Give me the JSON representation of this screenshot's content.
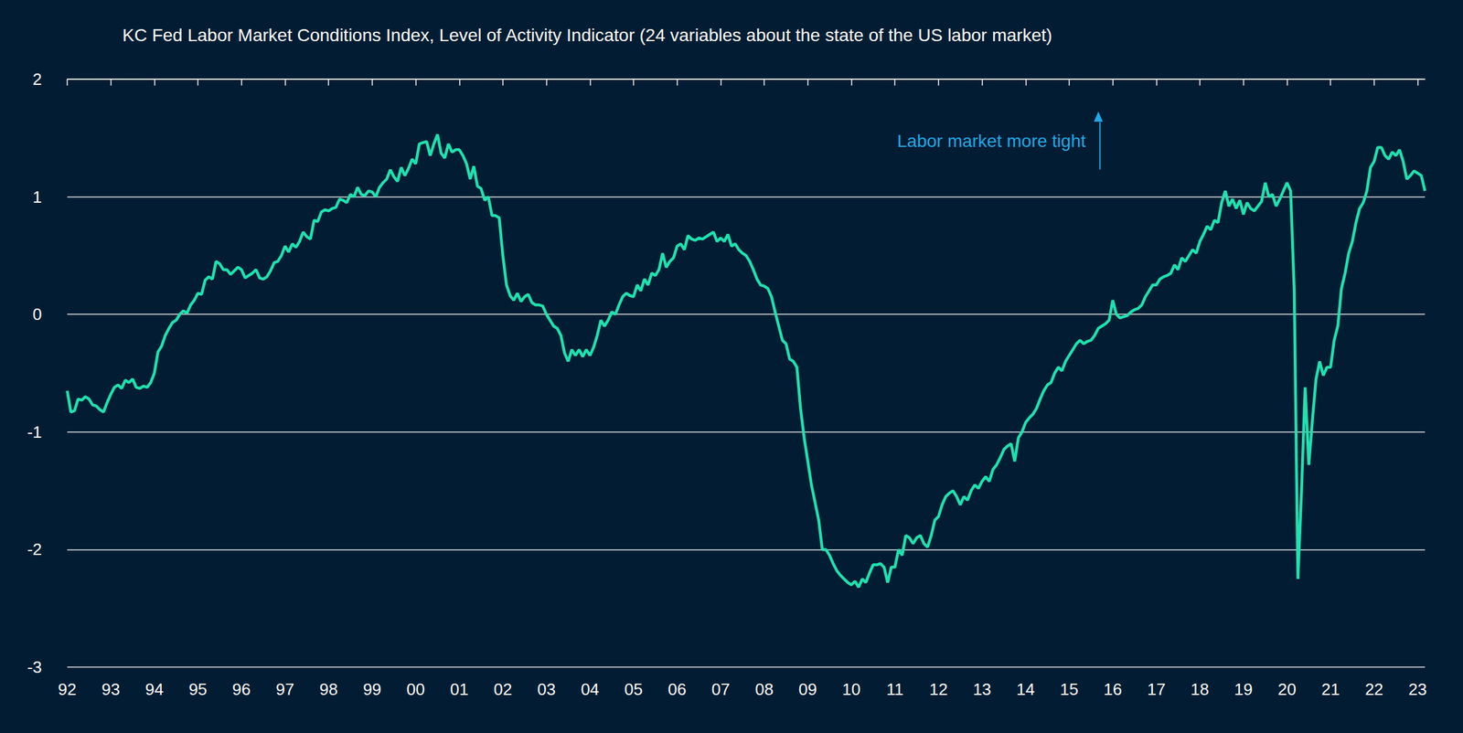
{
  "chart_data": {
    "type": "line",
    "title": "KC Fed Labor Market Conditions Index, Level of Activity Indicator (24 variables about the state of the US labor market)",
    "annotations": [
      {
        "text": "Labor market more tight"
      }
    ],
    "categories": [
      "92",
      null,
      null,
      null,
      null,
      null,
      null,
      null,
      null,
      null,
      null,
      null,
      "93",
      null,
      null,
      null,
      null,
      null,
      null,
      null,
      null,
      null,
      null,
      null,
      "94",
      null,
      null,
      null,
      null,
      null,
      null,
      null,
      null,
      null,
      null,
      null,
      "95",
      null,
      null,
      null,
      null,
      null,
      null,
      null,
      null,
      null,
      null,
      null,
      "96",
      null,
      null,
      null,
      null,
      null,
      null,
      null,
      null,
      null,
      null,
      null,
      "97",
      null,
      null,
      null,
      null,
      null,
      null,
      null,
      null,
      null,
      null,
      null,
      "98",
      null,
      null,
      null,
      null,
      null,
      null,
      null,
      null,
      null,
      null,
      null,
      "99",
      null,
      null,
      null,
      null,
      null,
      null,
      null,
      null,
      null,
      null,
      null,
      "00",
      null,
      null,
      null,
      null,
      null,
      null,
      null,
      null,
      null,
      null,
      null,
      "01",
      null,
      null,
      null,
      null,
      null,
      null,
      null,
      null,
      null,
      null,
      null,
      "02",
      null,
      null,
      null,
      null,
      null,
      null,
      null,
      null,
      null,
      null,
      null,
      "03",
      null,
      null,
      null,
      null,
      null,
      null,
      null,
      null,
      null,
      null,
      null,
      "04",
      null,
      null,
      null,
      null,
      null,
      null,
      null,
      null,
      null,
      null,
      null,
      "05",
      null,
      null,
      null,
      null,
      null,
      null,
      null,
      null,
      null,
      null,
      null,
      "06",
      null,
      null,
      null,
      null,
      null,
      null,
      null,
      null,
      null,
      null,
      null,
      "07",
      null,
      null,
      null,
      null,
      null,
      null,
      null,
      null,
      null,
      null,
      null,
      "08",
      null,
      null,
      null,
      null,
      null,
      null,
      null,
      null,
      null,
      null,
      null,
      "09",
      null,
      null,
      null,
      null,
      null,
      null,
      null,
      null,
      null,
      null,
      null,
      "10",
      null,
      null,
      null,
      null,
      null,
      null,
      null,
      null,
      null,
      null,
      null,
      "11",
      null,
      null,
      null,
      null,
      null,
      null,
      null,
      null,
      null,
      null,
      null,
      "12",
      null,
      null,
      null,
      null,
      null,
      null,
      null,
      null,
      null,
      null,
      null,
      "13",
      null,
      null,
      null,
      null,
      null,
      null,
      null,
      null,
      null,
      null,
      null,
      "14",
      null,
      null,
      null,
      null,
      null,
      null,
      null,
      null,
      null,
      null,
      null,
      "15",
      null,
      null,
      null,
      null,
      null,
      null,
      null,
      null,
      null,
      null,
      null,
      "16",
      null,
      null,
      null,
      null,
      null,
      null,
      null,
      null,
      null,
      null,
      null,
      "17",
      null,
      null,
      null,
      null,
      null,
      null,
      null,
      null,
      null,
      null,
      null,
      "18",
      null,
      null,
      null,
      null,
      null,
      null,
      null,
      null,
      null,
      null,
      null,
      "19",
      null,
      null,
      null,
      null,
      null,
      null,
      null,
      null,
      null,
      null,
      null,
      "20",
      null,
      null,
      null,
      null,
      null,
      null,
      null,
      null,
      null,
      null,
      null,
      "21",
      null,
      null,
      null,
      null,
      null,
      null,
      null,
      null,
      null,
      null,
      null,
      "22",
      null,
      null,
      null,
      null,
      null,
      null,
      null,
      null,
      null,
      null,
      null,
      "23",
      null,
      null
    ],
    "values": [
      -0.65,
      -0.83,
      -0.82,
      -0.72,
      -0.73,
      -0.7,
      -0.72,
      -0.77,
      -0.78,
      -0.81,
      -0.83,
      -0.75,
      -0.68,
      -0.62,
      -0.6,
      -0.63,
      -0.56,
      -0.58,
      -0.55,
      -0.62,
      -0.63,
      -0.61,
      -0.62,
      -0.58,
      -0.5,
      -0.32,
      -0.27,
      -0.18,
      -0.12,
      -0.07,
      -0.05,
      0.0,
      0.03,
      0.01,
      0.08,
      0.12,
      0.18,
      0.17,
      0.29,
      0.32,
      0.3,
      0.45,
      0.43,
      0.38,
      0.38,
      0.34,
      0.37,
      0.4,
      0.38,
      0.31,
      0.33,
      0.35,
      0.38,
      0.31,
      0.3,
      0.32,
      0.37,
      0.44,
      0.45,
      0.5,
      0.58,
      0.53,
      0.6,
      0.57,
      0.62,
      0.7,
      0.66,
      0.64,
      0.8,
      0.79,
      0.87,
      0.89,
      0.88,
      0.9,
      0.91,
      0.98,
      0.97,
      0.95,
      1.02,
      1.0,
      1.08,
      1.02,
      1.01,
      1.05,
      1.04,
      1.0,
      1.08,
      1.12,
      1.15,
      1.23,
      1.17,
      1.13,
      1.25,
      1.18,
      1.24,
      1.32,
      1.28,
      1.45,
      1.46,
      1.47,
      1.35,
      1.45,
      1.53,
      1.37,
      1.33,
      1.45,
      1.38,
      1.4,
      1.4,
      1.35,
      1.28,
      1.15,
      1.26,
      1.09,
      1.07,
      0.97,
      1.0,
      0.84,
      0.84,
      0.82,
      0.5,
      0.25,
      0.16,
      0.12,
      0.18,
      0.11,
      0.15,
      0.17,
      0.1,
      0.08,
      0.08,
      0.07,
      0.0,
      -0.05,
      -0.1,
      -0.12,
      -0.18,
      -0.33,
      -0.4,
      -0.3,
      -0.35,
      -0.3,
      -0.36,
      -0.3,
      -0.35,
      -0.28,
      -0.18,
      -0.05,
      -0.1,
      -0.05,
      0.02,
      0.0,
      0.08,
      0.15,
      0.18,
      0.16,
      0.15,
      0.25,
      0.2,
      0.3,
      0.25,
      0.35,
      0.33,
      0.38,
      0.52,
      0.4,
      0.45,
      0.48,
      0.58,
      0.6,
      0.55,
      0.67,
      0.64,
      0.63,
      0.65,
      0.64,
      0.66,
      0.68,
      0.7,
      0.62,
      0.65,
      0.62,
      0.68,
      0.58,
      0.6,
      0.55,
      0.52,
      0.5,
      0.45,
      0.38,
      0.3,
      0.25,
      0.24,
      0.22,
      0.15,
      0.02,
      -0.1,
      -0.22,
      -0.25,
      -0.38,
      -0.4,
      -0.45,
      -0.8,
      -1.05,
      -1.25,
      -1.45,
      -1.6,
      -1.75,
      -2.0,
      -2.0,
      -2.05,
      -2.12,
      -2.18,
      -2.22,
      -2.25,
      -2.28,
      -2.3,
      -2.27,
      -2.32,
      -2.25,
      -2.28,
      -2.2,
      -2.13,
      -2.13,
      -2.12,
      -2.15,
      -2.28,
      -2.15,
      -2.15,
      -2.0,
      -2.05,
      -1.88,
      -1.9,
      -1.95,
      -1.9,
      -1.88,
      -1.95,
      -1.98,
      -1.88,
      -1.75,
      -1.72,
      -1.62,
      -1.55,
      -1.52,
      -1.5,
      -1.55,
      -1.62,
      -1.55,
      -1.58,
      -1.5,
      -1.45,
      -1.48,
      -1.42,
      -1.38,
      -1.42,
      -1.32,
      -1.28,
      -1.22,
      -1.15,
      -1.12,
      -1.1,
      -1.25,
      -1.05,
      -1.0,
      -0.92,
      -0.88,
      -0.85,
      -0.8,
      -0.72,
      -0.65,
      -0.6,
      -0.58,
      -0.5,
      -0.45,
      -0.48,
      -0.4,
      -0.35,
      -0.3,
      -0.25,
      -0.22,
      -0.25,
      -0.23,
      -0.22,
      -0.18,
      -0.12,
      -0.1,
      -0.08,
      -0.05,
      0.12,
      0.0,
      -0.03,
      -0.02,
      -0.01,
      0.02,
      0.04,
      0.05,
      0.08,
      0.15,
      0.2,
      0.25,
      0.25,
      0.3,
      0.32,
      0.33,
      0.35,
      0.42,
      0.38,
      0.48,
      0.45,
      0.5,
      0.55,
      0.52,
      0.62,
      0.68,
      0.75,
      0.72,
      0.8,
      0.78,
      0.95,
      1.05,
      0.92,
      0.98,
      0.9,
      0.97,
      0.85,
      0.95,
      0.9,
      0.88,
      0.92,
      0.96,
      1.12,
      1.0,
      1.02,
      0.92,
      0.98,
      1.05,
      1.12,
      1.05,
      0.2,
      -2.25,
      -1.5,
      -0.62,
      -1.28,
      -0.9,
      -0.55,
      -0.4,
      -0.52,
      -0.45,
      -0.45,
      -0.22,
      -0.1,
      0.22,
      0.35,
      0.52,
      0.62,
      0.78,
      0.9,
      0.95,
      1.05,
      1.25,
      1.3,
      1.42,
      1.42,
      1.35,
      1.32,
      1.38,
      1.35,
      1.4,
      1.3,
      1.15,
      1.18,
      1.22,
      1.2,
      1.18,
      1.05
    ],
    "color": "#1de2b0",
    "ylim": [
      -3,
      2
    ],
    "yticks": [
      -3,
      -2,
      -1,
      0,
      1,
      2
    ],
    "grid": true
  }
}
